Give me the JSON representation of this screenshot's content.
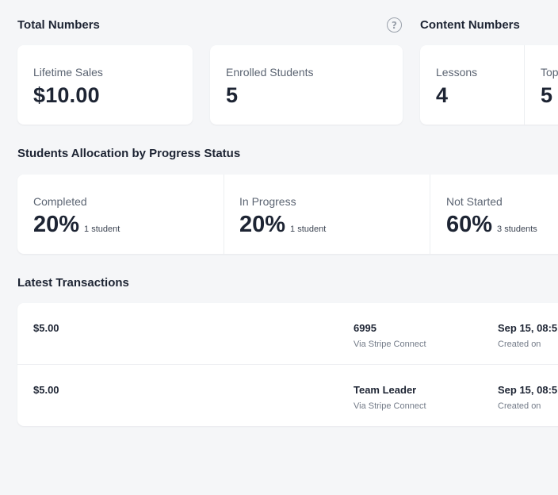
{
  "total_numbers": {
    "title": "Total Numbers",
    "help_icon": "?",
    "lifetime_sales": {
      "label": "Lifetime Sales",
      "value": "$10.00"
    },
    "enrolled_students": {
      "label": "Enrolled Students",
      "value": "5"
    }
  },
  "content_numbers": {
    "title": "Content Numbers",
    "lessons": {
      "label": "Lessons",
      "value": "4"
    },
    "topics": {
      "label": "Top",
      "value": "5"
    }
  },
  "progress_status": {
    "title": "Students Allocation by Progress Status",
    "items": [
      {
        "label": "Completed",
        "percent": "20%",
        "count": "1 student"
      },
      {
        "label": "In Progress",
        "percent": "20%",
        "count": "1 student"
      },
      {
        "label": "Not Started",
        "percent": "60%",
        "count": "3 students"
      }
    ]
  },
  "transactions": {
    "title": "Latest Transactions",
    "rows": [
      {
        "amount": "$5.00",
        "name": "6995",
        "via": "Via Stripe Connect",
        "date": "Sep 15, 08:5",
        "created_label": "Created on"
      },
      {
        "amount": "$5.00",
        "name": "Team Leader",
        "via": "Via Stripe Connect",
        "date": "Sep 15, 08:5",
        "created_label": "Created on"
      }
    ]
  }
}
